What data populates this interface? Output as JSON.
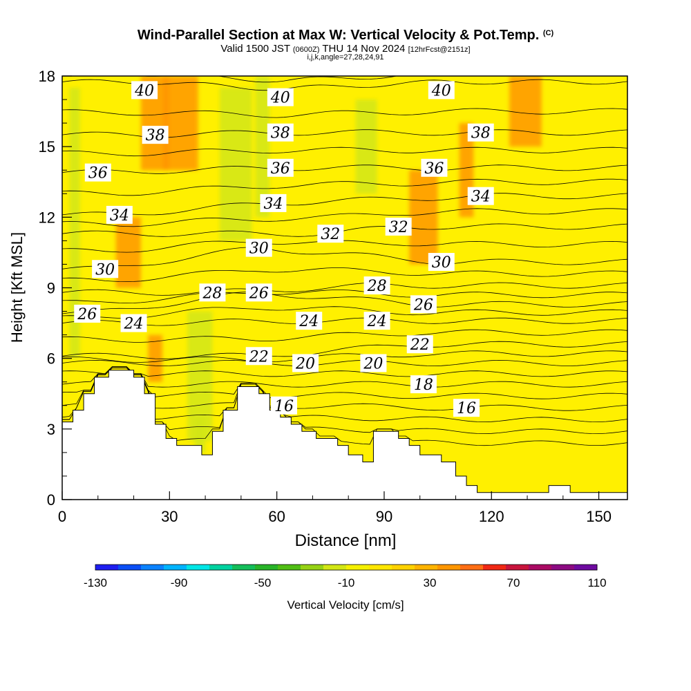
{
  "header": {
    "title": "Wind-Parallel Section at Max W: Vertical Velocity & Pot.Temp.",
    "copyright": "(C)",
    "valid_prefix": "Valid 1500 JST",
    "valid_utc": "(0600Z)",
    "valid_date": "THU 14 Nov 2024",
    "forecast": "[12hrFcst@2151z]",
    "meta": "i,j,k,angle=27,28,24,91"
  },
  "colors": {
    "colorbar": [
      "#1e1ef0",
      "#0a4ef5",
      "#0a82ff",
      "#00b4ff",
      "#00e6e6",
      "#00d2a0",
      "#14be5a",
      "#28b428",
      "#50be14",
      "#96d214",
      "#d2e614",
      "#f5f000",
      "#ffe600",
      "#ffd200",
      "#ffb400",
      "#ff9600",
      "#ff6e14",
      "#f02814",
      "#c8143c",
      "#aa0a64",
      "#8c0a82",
      "#6e0aa0"
    ],
    "terrain": "#ffffff",
    "contour": "#000000"
  },
  "chart_data": {
    "type": "heatmap",
    "xlabel": "Distance [nm]",
    "ylabel": "Height [Kft MSL]",
    "xlim": [
      0,
      158
    ],
    "ylim": [
      0,
      18
    ],
    "x_ticks": [
      0,
      30,
      60,
      90,
      120,
      150
    ],
    "y_ticks": [
      0,
      3,
      6,
      9,
      12,
      15,
      18
    ],
    "colorbar": {
      "label": "Vertical Velocity [cm/s]",
      "min": -130,
      "max": 110,
      "step": 10,
      "tick_labels": [
        -130,
        -90,
        -50,
        -10,
        30,
        70,
        110
      ]
    },
    "terrain_profile": {
      "x": [
        0,
        3,
        3,
        6,
        6,
        9,
        9,
        13,
        13,
        20,
        20,
        23,
        23,
        26,
        26,
        29,
        29,
        32,
        32,
        39,
        39,
        42,
        42,
        45,
        45,
        49,
        49,
        55,
        55,
        58,
        58,
        61,
        61,
        64,
        64,
        67,
        67,
        71,
        71,
        77,
        77,
        80,
        80,
        84,
        84,
        87,
        87,
        94,
        94,
        97,
        97,
        100,
        100,
        106,
        106,
        110,
        110,
        113,
        113,
        116,
        116,
        136,
        136,
        142,
        142,
        158
      ],
      "height": [
        3.3,
        3.3,
        3.8,
        3.8,
        4.5,
        4.5,
        5.2,
        5.2,
        5.5,
        5.5,
        5.2,
        5.2,
        4.5,
        4.5,
        3.2,
        3.2,
        2.6,
        2.6,
        2.3,
        2.3,
        1.9,
        1.9,
        2.9,
        2.9,
        3.8,
        3.8,
        4.8,
        4.8,
        4.5,
        4.5,
        3.8,
        3.8,
        3.5,
        3.5,
        3.2,
        3.2,
        2.9,
        2.9,
        2.6,
        2.6,
        2.3,
        2.3,
        1.9,
        1.9,
        1.6,
        1.6,
        2.9,
        2.9,
        2.6,
        2.6,
        2.3,
        2.3,
        1.9,
        1.9,
        1.6,
        1.6,
        1.0,
        1.0,
        0.6,
        0.6,
        0.3,
        0.3,
        0.6,
        0.6,
        0.3,
        0.3
      ]
    },
    "series": [
      {
        "name": "green_updown_bands",
        "value": -30,
        "cells": [
          [
            2,
            5,
            6,
            17.5
          ],
          [
            35,
            42,
            2.5,
            8
          ],
          [
            37,
            40,
            2,
            3.5
          ],
          [
            44,
            53,
            11,
            17.5
          ],
          [
            54,
            58,
            12,
            18
          ],
          [
            82,
            88,
            13,
            17
          ]
        ]
      },
      {
        "name": "orange_bands",
        "value": 25,
        "cells": [
          [
            22,
            30,
            14,
            18
          ],
          [
            28,
            38,
            14,
            18
          ],
          [
            15,
            22,
            9,
            12
          ],
          [
            24,
            28,
            5,
            7
          ],
          [
            97,
            105,
            10,
            14
          ],
          [
            111,
            115,
            12,
            16
          ],
          [
            125,
            134,
            15,
            18
          ]
        ]
      }
    ],
    "contour_labels": [
      {
        "text": "40",
        "x": 23,
        "y": 17.4
      },
      {
        "text": "40",
        "x": 61,
        "y": 17.1
      },
      {
        "text": "40",
        "x": 106,
        "y": 17.4
      },
      {
        "text": "38",
        "x": 26,
        "y": 15.5
      },
      {
        "text": "38",
        "x": 61,
        "y": 15.6
      },
      {
        "text": "38",
        "x": 117,
        "y": 15.6
      },
      {
        "text": "36",
        "x": 10,
        "y": 13.9
      },
      {
        "text": "36",
        "x": 61,
        "y": 14.1
      },
      {
        "text": "36",
        "x": 104,
        "y": 14.1
      },
      {
        "text": "34",
        "x": 16,
        "y": 12.1
      },
      {
        "text": "34",
        "x": 59,
        "y": 12.6
      },
      {
        "text": "34",
        "x": 117,
        "y": 12.9
      },
      {
        "text": "32",
        "x": 75,
        "y": 11.3
      },
      {
        "text": "32",
        "x": 94,
        "y": 11.6
      },
      {
        "text": "30",
        "x": 12,
        "y": 9.8
      },
      {
        "text": "30",
        "x": 55,
        "y": 10.7
      },
      {
        "text": "30",
        "x": 106,
        "y": 10.1
      },
      {
        "text": "28",
        "x": 42,
        "y": 8.8
      },
      {
        "text": "28",
        "x": 88,
        "y": 9.1
      },
      {
        "text": "26",
        "x": 7,
        "y": 7.9
      },
      {
        "text": "26",
        "x": 55,
        "y": 8.8
      },
      {
        "text": "26",
        "x": 101,
        "y": 8.3
      },
      {
        "text": "24",
        "x": 20,
        "y": 7.5
      },
      {
        "text": "24",
        "x": 69,
        "y": 7.6
      },
      {
        "text": "24",
        "x": 88,
        "y": 7.6
      },
      {
        "text": "22",
        "x": 55,
        "y": 6.1
      },
      {
        "text": "22",
        "x": 100,
        "y": 6.6
      },
      {
        "text": "20",
        "x": 68,
        "y": 5.8
      },
      {
        "text": "20",
        "x": 87,
        "y": 5.8
      },
      {
        "text": "18",
        "x": 101,
        "y": 4.9
      },
      {
        "text": "16",
        "x": 62,
        "y": 4.0
      },
      {
        "text": "16",
        "x": 113,
        "y": 3.9
      }
    ]
  }
}
